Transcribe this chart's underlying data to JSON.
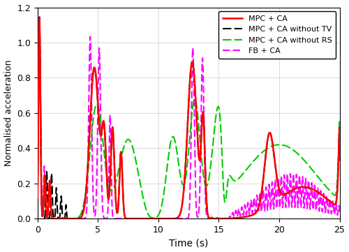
{
  "title": "",
  "xlabel": "Time (s)",
  "ylabel": "Normalised acceleration",
  "xlim": [
    0,
    25
  ],
  "ylim": [
    0,
    1.2
  ],
  "xticks": [
    0,
    5,
    10,
    15,
    20,
    25
  ],
  "yticks": [
    0,
    0.2,
    0.4,
    0.6,
    0.8,
    1.0,
    1.2
  ],
  "legend": [
    "MPC + CA",
    "MPC + CA without TV",
    "MPC + CA without RS",
    "FB + CA"
  ],
  "colors": [
    "#ff0000",
    "#000000",
    "#00cc00",
    "#ff00ff"
  ],
  "figsize": [
    5.0,
    3.61
  ],
  "dpi": 100
}
